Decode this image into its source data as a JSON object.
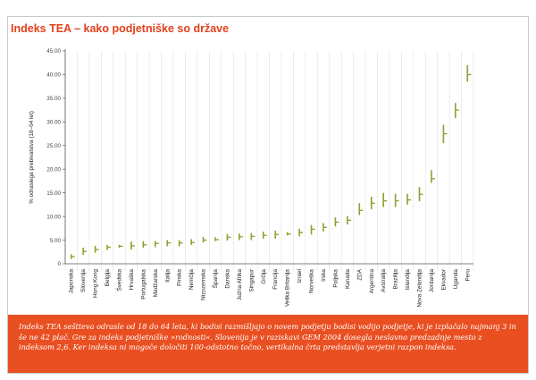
{
  "title": "Indeks TEA – kako podjetniške so države",
  "caption": "Indeks TEA seštteva odrasle od 18 do 64 leta, ki bodisi razmišljajo o novem podjetju bodisi vodijo podjetje, ki je izplačalo najmanj 3 in še ne 42 plač. Gre za indeks podjetniške »rodnosti«. Slovenija je v raziskavi GEM 2004 dosegla neslavno predzadnje mesto z indeksom 2,6. Ker indeksa ni mogoče določiti 100-odstotno točno, vertikalna črta predstavlja verjetni razpon indeksa.",
  "colors": {
    "title": "#e2401b",
    "band": "#e94f21",
    "mark": "#8aa12e",
    "grid": "#e0e0e0"
  },
  "chart_data": {
    "type": "error_bar",
    "title": "Indeks TEA – kako podjetniške so države",
    "ylabel": "% odraslega prebivalstva (18–64 let)",
    "xlabel": "",
    "ylim": [
      0,
      45
    ],
    "yticks": [
      "0",
      "5.00",
      "10.00",
      "15.00",
      "20.00",
      "25.00",
      "30.00",
      "35.00",
      "40.00",
      "45.00"
    ],
    "grid": "vertical",
    "categories": [
      "Japonska",
      "Slovenija",
      "Hong Kong",
      "Belgija",
      "Švedska",
      "Hrvaška",
      "Portugalska",
      "Madžarska",
      "Italija",
      "Finska",
      "Nemčija",
      "Nizozemska",
      "Španija",
      "Danska",
      "Južna Afrika",
      "Singapur",
      "Grčija",
      "Francija",
      "Velika Britanija",
      "Izrael",
      "Norveška",
      "Irska",
      "Poljska",
      "Kanada",
      "ZDA",
      "Argentina",
      "Avstralija",
      "Brazilija",
      "Islandija",
      "Nova Zelandija",
      "Jordanija",
      "Ekvador",
      "Uganda",
      "Peru"
    ],
    "series": [
      {
        "values": [
          1.5,
          2.6,
          3.0,
          3.5,
          3.7,
          3.8,
          4.0,
          4.3,
          4.4,
          4.4,
          4.5,
          5.0,
          5.1,
          5.6,
          5.7,
          5.8,
          6.0,
          6.2,
          6.3,
          6.6,
          7.3,
          7.7,
          8.8,
          9.2,
          11.3,
          12.8,
          13.3,
          13.3,
          13.5,
          14.7,
          18.0,
          27.5,
          32.5,
          40.0
        ],
        "low": [
          1.0,
          1.9,
          2.3,
          2.9,
          3.4,
          3.0,
          3.4,
          3.5,
          3.7,
          3.7,
          4.0,
          4.5,
          4.8,
          4.9,
          5.0,
          5.0,
          5.3,
          5.3,
          6.0,
          5.8,
          6.2,
          6.8,
          7.9,
          8.3,
          10.3,
          11.5,
          12.0,
          12.0,
          12.5,
          13.2,
          17.1,
          25.5,
          30.8,
          38.5
        ],
        "high": [
          2.0,
          3.4,
          3.8,
          4.0,
          4.0,
          4.7,
          4.8,
          4.8,
          5.0,
          5.0,
          5.2,
          5.7,
          5.6,
          6.3,
          6.4,
          6.5,
          6.8,
          7.0,
          6.7,
          7.4,
          8.2,
          8.6,
          9.8,
          10.1,
          12.8,
          14.2,
          15.0,
          14.8,
          14.8,
          16.2,
          19.8,
          29.4,
          34.0,
          42.0
        ]
      }
    ]
  }
}
